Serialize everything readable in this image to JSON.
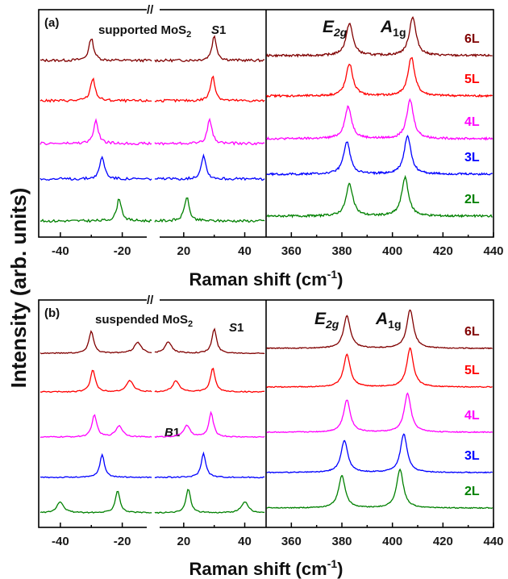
{
  "figure": {
    "ylabel": "Intensity (arb. units)",
    "xlabel_main": "Raman shift (cm",
    "xlabel_sup": "-1",
    "xlabel_close": ")",
    "break_mark": "//"
  },
  "colors": {
    "6L": "#800000",
    "5L": "#ff0000",
    "4L": "#ff00ff",
    "3L": "#0000ff",
    "2L": "#008000"
  },
  "chart_data": [
    {
      "type": "line",
      "panel_label": "(a)",
      "title": "supported MoS",
      "title_sub": "2",
      "annotation_S1": "S1",
      "annotation_S1_italic": "S",
      "annotation_S1_rest": "1",
      "annotation_E2g_main": "E",
      "annotation_E2g_sub": "2g",
      "annotation_A1g_main": "A",
      "annotation_A1g_sub": "1g",
      "xlim_low": [
        -47,
        -10
      ],
      "xlim_high": [
        10,
        47
      ],
      "xlim_right": [
        350,
        440
      ],
      "xticks_left": [
        -40,
        -20,
        20,
        40
      ],
      "xticks_right": [
        360,
        380,
        400,
        420,
        440
      ],
      "series": [
        {
          "name": "6L",
          "shear_peak_cm1": 30,
          "E2g_cm1": 383,
          "A1g_cm1": 408
        },
        {
          "name": "5L",
          "shear_peak_cm1": 29.5,
          "E2g_cm1": 383,
          "A1g_cm1": 407.5
        },
        {
          "name": "4L",
          "shear_peak_cm1": 28.5,
          "E2g_cm1": 382.5,
          "A1g_cm1": 407
        },
        {
          "name": "3L",
          "shear_peak_cm1": 26.5,
          "E2g_cm1": 382,
          "A1g_cm1": 406
        },
        {
          "name": "2L",
          "shear_peak_cm1": 21,
          "E2g_cm1": 383,
          "A1g_cm1": 405
        }
      ]
    },
    {
      "type": "line",
      "panel_label": "(b)",
      "title": "suspended MoS",
      "title_sub": "2",
      "annotation_S1": "S1",
      "annotation_S1_italic": "S",
      "annotation_S1_rest": "1",
      "annotation_B1_italic": "B",
      "annotation_B1_rest": "1",
      "annotation_E2g_main": "E",
      "annotation_E2g_sub": "2g",
      "annotation_A1g_main": "A",
      "annotation_A1g_sub": "1g",
      "xlim_low": [
        -47,
        -10
      ],
      "xlim_high": [
        10,
        47
      ],
      "xlim_right": [
        350,
        440
      ],
      "xticks_left": [
        -40,
        -20,
        20,
        40
      ],
      "xticks_right": [
        360,
        380,
        400,
        420,
        440
      ],
      "series": [
        {
          "name": "6L",
          "shear_peak_cm1": 30,
          "breathing_peak_cm1": 15,
          "E2g_cm1": 382,
          "A1g_cm1": 407
        },
        {
          "name": "5L",
          "shear_peak_cm1": 29.5,
          "breathing_peak_cm1": 17.5,
          "E2g_cm1": 382,
          "A1g_cm1": 407
        },
        {
          "name": "4L",
          "shear_peak_cm1": 29,
          "breathing_peak_cm1": 21,
          "E2g_cm1": 382,
          "A1g_cm1": 406
        },
        {
          "name": "3L",
          "shear_peak_cm1": 26.5,
          "E2g_cm1": 381,
          "A1g_cm1": 404.5
        },
        {
          "name": "2L",
          "shear_peak_cm1": 21.5,
          "breathing_peak_cm1": 40,
          "E2g_cm1": 380,
          "A1g_cm1": 403
        }
      ]
    }
  ]
}
